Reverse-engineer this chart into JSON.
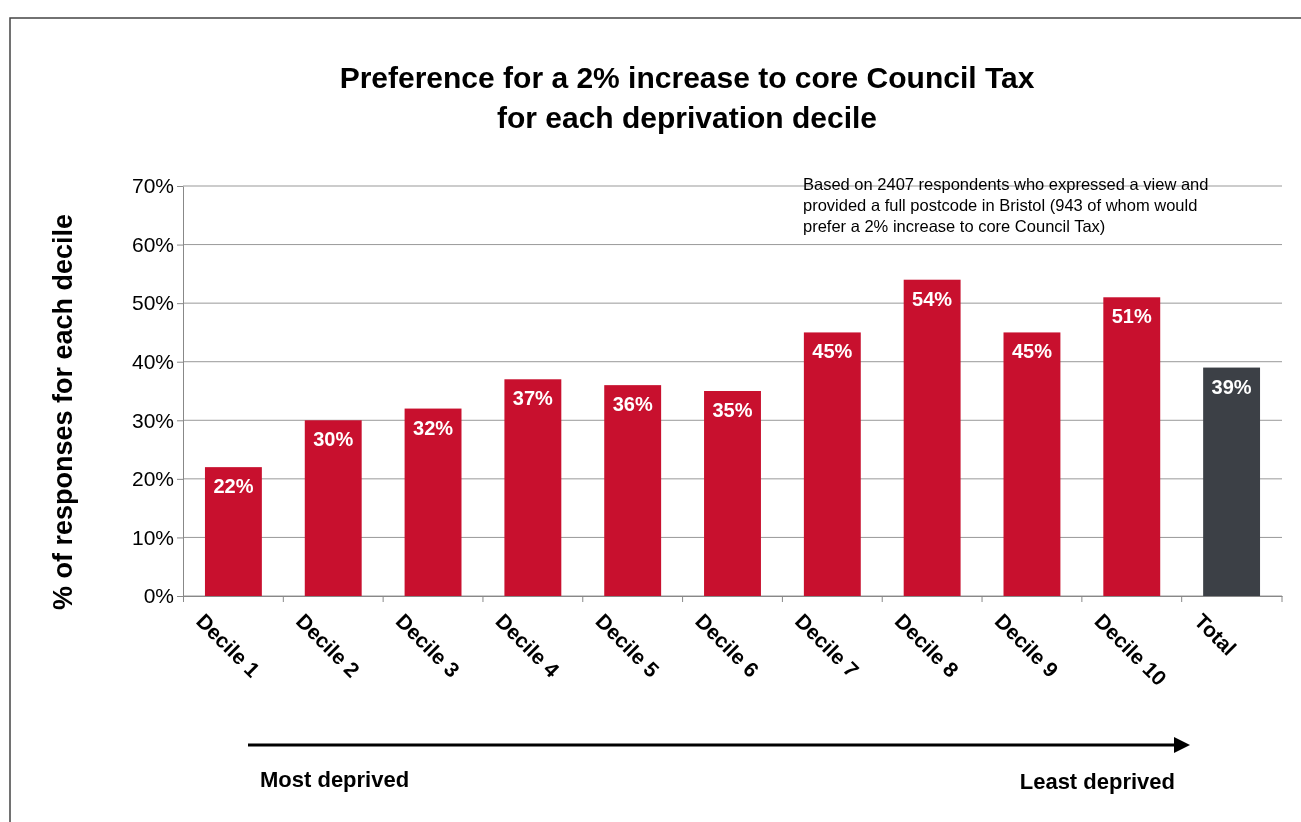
{
  "chart_data": {
    "type": "bar",
    "title": "Preference for a 2% increase to core Council Tax\nfor each deprivation decile",
    "ylabel": "% of responses for each decile",
    "categories": [
      "Decile 1",
      "Decile 2",
      "Decile 3",
      "Decile 4",
      "Decile 5",
      "Decile 6",
      "Decile 7",
      "Decile 8",
      "Decile 9",
      "Decile 10",
      "Total"
    ],
    "values": [
      22,
      30,
      32,
      37,
      36,
      35,
      45,
      54,
      45,
      51,
      39
    ],
    "colors": [
      "#c8102e",
      "#c8102e",
      "#c8102e",
      "#c8102e",
      "#c8102e",
      "#c8102e",
      "#c8102e",
      "#c8102e",
      "#c8102e",
      "#c8102e",
      "#3c4046"
    ],
    "value_labels": [
      "22%",
      "30%",
      "32%",
      "37%",
      "36%",
      "35%",
      "45%",
      "54%",
      "45%",
      "51%",
      "39%"
    ],
    "ylim": [
      0,
      70
    ],
    "yticks": [
      {
        "value": 0,
        "label": "0%"
      },
      {
        "value": 10,
        "label": "10%"
      },
      {
        "value": 20,
        "label": "20%"
      },
      {
        "value": 30,
        "label": "30%"
      },
      {
        "value": 40,
        "label": "40%"
      },
      {
        "value": 50,
        "label": "50%"
      },
      {
        "value": 60,
        "label": "60%"
      },
      {
        "value": 70,
        "label": "70%"
      }
    ],
    "grid": "y",
    "annotations": [
      "Based on 2407 respondents who expressed a view and provided a full postcode in Bristol (943 of whom would prefer a 2% increase to core Council Tax)",
      "Most deprived",
      "Least deprived"
    ]
  }
}
